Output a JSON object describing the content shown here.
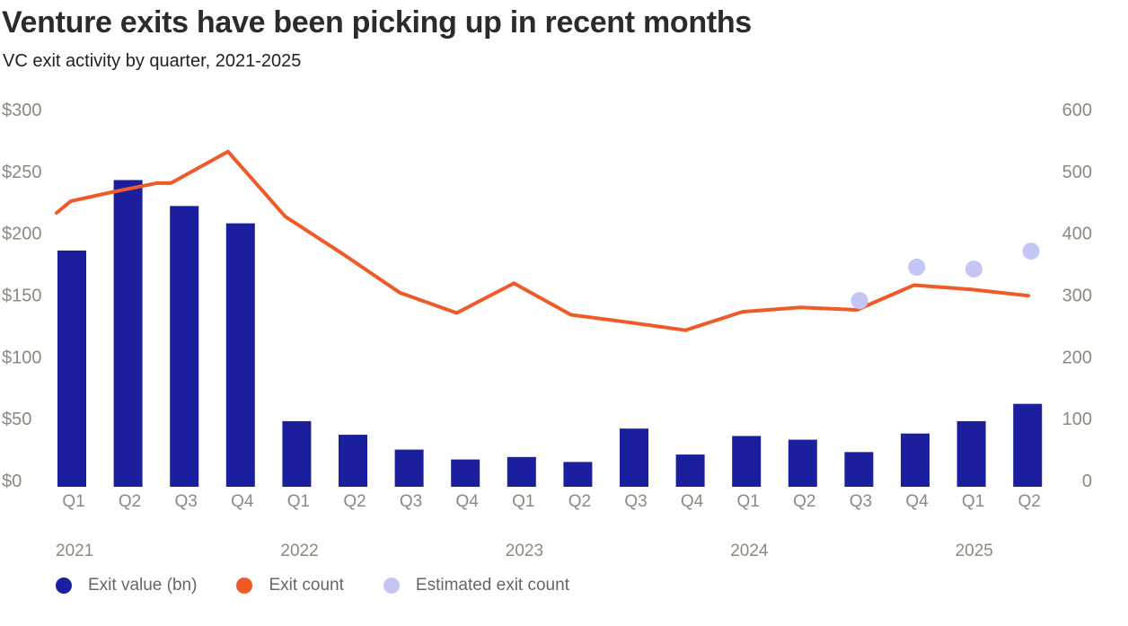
{
  "title": "Venture exits have been picking up in recent months",
  "subtitle": "VC exit activity by quarter, 2021-2025",
  "legend": {
    "exit_value": "Exit value (bn)",
    "exit_count": "Exit count",
    "estimated_count": "Estimated exit count"
  },
  "colors": {
    "bar": "#1b1f9e",
    "line": "#ee5a28",
    "estimated": "#c5c6f5",
    "axis_text": "#8c8a7d",
    "text": "#555555"
  },
  "chart_data": {
    "type": "bar",
    "categories": [
      "Q1",
      "Q2",
      "Q3",
      "Q4",
      "Q1",
      "Q2",
      "Q3",
      "Q4",
      "Q1",
      "Q2",
      "Q3",
      "Q4",
      "Q1",
      "Q2",
      "Q3",
      "Q4",
      "Q1",
      "Q2"
    ],
    "years": [
      {
        "label": "2021",
        "start_index": 0
      },
      {
        "label": "2022",
        "start_index": 4
      },
      {
        "label": "2023",
        "start_index": 8
      },
      {
        "label": "2024",
        "start_index": 12
      },
      {
        "label": "2025",
        "start_index": 16
      }
    ],
    "series": [
      {
        "name": "Exit value (bn)",
        "type": "bar",
        "axis": "left",
        "values": [
          186,
          243,
          222,
          208,
          48,
          37,
          25,
          17,
          19,
          15,
          42,
          21,
          36,
          33,
          23,
          38,
          48,
          62
        ]
      },
      {
        "name": "Exit count",
        "type": "line",
        "axis": "right",
        "values": [
          [
            0,
            433
          ],
          [
            0.25,
            452
          ],
          [
            1,
            467
          ],
          [
            1.75,
            481
          ],
          [
            2,
            481
          ],
          [
            3,
            532
          ],
          [
            4,
            427
          ],
          [
            5,
            367
          ],
          [
            6,
            304
          ],
          [
            7,
            271
          ],
          [
            8,
            319
          ],
          [
            9,
            268
          ],
          [
            10,
            256
          ],
          [
            11,
            243
          ],
          [
            12,
            273
          ],
          [
            13,
            280
          ],
          [
            14,
            276
          ],
          [
            15,
            316
          ],
          [
            16,
            309
          ],
          [
            17,
            299
          ]
        ]
      },
      {
        "name": "Estimated exit count",
        "type": "scatter",
        "axis": "right",
        "values": [
          [
            14,
            291
          ],
          [
            15,
            345
          ],
          [
            16,
            342
          ],
          [
            17,
            371
          ]
        ]
      }
    ],
    "y_left": {
      "min": 0,
      "max": 300,
      "ticks": [
        "$0",
        "$50",
        "$100",
        "$150",
        "$200",
        "$250",
        "$300"
      ],
      "tick_values": [
        0,
        50,
        100,
        150,
        200,
        250,
        300
      ]
    },
    "y_right": {
      "min": 0,
      "max": 600,
      "ticks": [
        "0",
        "100",
        "200",
        "300",
        "400",
        "500",
        "600"
      ],
      "tick_values": [
        0,
        100,
        200,
        300,
        400,
        500,
        600
      ]
    },
    "grid": false,
    "legend_position": "bottom-left"
  }
}
